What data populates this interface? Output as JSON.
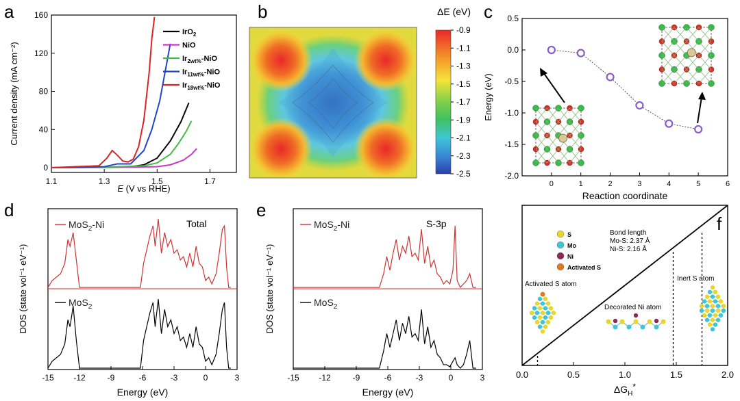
{
  "figure": {
    "panels": [
      "a",
      "b",
      "c",
      "d",
      "e",
      "f"
    ]
  },
  "panel_a": {
    "letter": "a",
    "ylabel": "Current density (mA cm⁻²)",
    "xlabel_main": "E",
    "xlabel_rest": " (V vs RHE)",
    "yticks": [
      "0",
      "40",
      "80",
      "120",
      "160"
    ],
    "xticks": [
      "1.1",
      "1.3",
      "1.5",
      "1.7"
    ],
    "legend": [
      {
        "name": "IrO2",
        "base": "IrO",
        "sub": "2",
        "suffix": "",
        "color": "#000000"
      },
      {
        "name": "NiO",
        "base": "NiO",
        "sub": "",
        "suffix": "",
        "color": "#cc33cc"
      },
      {
        "name": "Ir2wt%-NiO",
        "base": "Ir",
        "sub": "2wt%",
        "suffix": "-NiO",
        "color": "#44bb44"
      },
      {
        "name": "Ir11wt%-NiO",
        "base": "Ir",
        "sub": "11wt%",
        "suffix": "-NiO",
        "color": "#2244cc"
      },
      {
        "name": "Ir18wt%-NiO",
        "base": "Ir",
        "sub": "18wt%",
        "suffix": "-NiO",
        "color": "#dd2222"
      }
    ]
  },
  "panel_b": {
    "letter": "b",
    "colorbar_title": "ΔE (eV)",
    "colorbar_ticks": [
      "-0.9",
      "-1.1",
      "-1.3",
      "-1.5",
      "-1.7",
      "-1.9",
      "-2.1",
      "-2.3",
      "-2.5"
    ]
  },
  "panel_c": {
    "letter": "c",
    "ylabel": "Energy (eV)",
    "xlabel": "Reaction coordinate",
    "yticks": [
      "0.5",
      "0.0",
      "-0.5",
      "-1.0",
      "-1.5",
      "-2.0"
    ],
    "xticks": [
      "0",
      "1",
      "2",
      "3",
      "4",
      "5",
      "6"
    ]
  },
  "panel_d": {
    "letter": "d",
    "ylabel": "DOS (state vol⁻¹ eV⁻¹)",
    "xlabel": "Energy (eV)",
    "xticks": [
      "-15",
      "-12",
      "-9",
      "-6",
      "-3",
      "0",
      "3"
    ],
    "top_label_base": "MoS",
    "top_label_sub": "2",
    "top_label_suffix": "-Ni",
    "bottom_label_base": "MoS",
    "bottom_label_sub": "2",
    "annotation": "Total"
  },
  "panel_e": {
    "letter": "e",
    "ylabel": "DOS (state vol⁻¹ eV⁻¹)",
    "xlabel": "Energy (eV)",
    "xticks": [
      "-15",
      "-12",
      "-9",
      "-6",
      "-3",
      "0",
      "3"
    ],
    "top_label_base": "MoS",
    "top_label_sub": "2",
    "top_label_suffix": "-Ni",
    "bottom_label_base": "MoS",
    "bottom_label_sub": "2",
    "annotation": "S-3p"
  },
  "panel_f": {
    "letter": "f",
    "xlabel_base": "ΔG",
    "xlabel_sub": "H",
    "xlabel_sup": "*",
    "xticks": [
      "0.0",
      "0.5",
      "1.0",
      "1.5",
      "2.0"
    ],
    "legend": [
      {
        "label": "S",
        "color": "#e8d62a"
      },
      {
        "label": "Mo",
        "color": "#3ec6d6"
      },
      {
        "label": "Ni",
        "color": "#8a2a5a"
      },
      {
        "label": "Activated S",
        "color": "#e07a20"
      }
    ],
    "bond_title": "Bond length",
    "bond_mos": "Mo-S:  2.37 Å",
    "bond_nis": "Ni-S: 2.16 Å",
    "label_activated": "Activated S atom",
    "label_decorated": "Decorated Ni atom",
    "label_inert": "Inert S atom"
  },
  "chart_data": [
    {
      "type": "line",
      "panel": "a",
      "xlabel": "E (V vs RHE)",
      "ylabel": "Current density (mA cm-2)",
      "xlim": [
        1.1,
        1.8
      ],
      "ylim": [
        -5,
        160
      ],
      "series": [
        {
          "name": "IrO2",
          "color": "#000000",
          "x": [
            1.1,
            1.3,
            1.4,
            1.45,
            1.5,
            1.55,
            1.59,
            1.62
          ],
          "y": [
            0,
            0.5,
            1,
            3,
            10,
            28,
            48,
            68
          ]
        },
        {
          "name": "NiO",
          "color": "#cc33cc",
          "x": [
            1.1,
            1.3,
            1.5,
            1.55,
            1.6,
            1.63,
            1.65
          ],
          "y": [
            0,
            0.2,
            1,
            3,
            8,
            14,
            20
          ]
        },
        {
          "name": "Ir2wt%-NiO",
          "color": "#44bb44",
          "x": [
            1.1,
            1.3,
            1.45,
            1.5,
            1.55,
            1.58,
            1.61,
            1.63
          ],
          "y": [
            0,
            0.5,
            2,
            5,
            14,
            25,
            38,
            49
          ]
        },
        {
          "name": "Ir11wt%-NiO",
          "color": "#2244cc",
          "x": [
            1.1,
            1.3,
            1.35,
            1.4,
            1.45,
            1.48,
            1.51,
            1.53,
            1.55
          ],
          "y": [
            0,
            1,
            4,
            4,
            18,
            40,
            70,
            100,
            130
          ]
        },
        {
          "name": "Ir18wt%-NiO",
          "color": "#dd2222",
          "x": [
            1.1,
            1.28,
            1.31,
            1.33,
            1.35,
            1.37,
            1.39,
            1.41,
            1.43,
            1.45,
            1.47,
            1.48,
            1.49
          ],
          "y": [
            0,
            2,
            10,
            18,
            13,
            7,
            6,
            9,
            22,
            50,
            100,
            135,
            158
          ]
        }
      ]
    },
    {
      "type": "heatmap",
      "panel": "b",
      "colorbar_label": "ΔE (eV)",
      "zlim": [
        -2.5,
        -0.9
      ],
      "description_values": {
        "corners": -0.9,
        "center": -2.5
      }
    },
    {
      "type": "scatter",
      "panel": "c",
      "xlabel": "Reaction coordinate",
      "ylabel": "Energy (eV)",
      "xlim": [
        -1,
        6
      ],
      "ylim": [
        -2.0,
        0.5
      ],
      "x": [
        0,
        1,
        2,
        3,
        4,
        5
      ],
      "y": [
        0.0,
        -0.05,
        -0.43,
        -0.88,
        -1.17,
        -1.26
      ]
    },
    {
      "type": "line",
      "panel": "d",
      "xlabel": "Energy (eV)",
      "xlim": [
        -15,
        3
      ],
      "series": [
        {
          "name": "MoS2-Ni",
          "color": "#cc3333",
          "x": [
            -15,
            -14.6,
            -14.2,
            -13.8,
            -13.4,
            -13.1,
            -12.9,
            -12.6,
            -12.3,
            -12,
            -6.2,
            -5.9,
            -5.6,
            -5.3,
            -5,
            -4.8,
            -4.5,
            -4.2,
            -3.9,
            -3.6,
            -3.3,
            -3.0,
            -2.7,
            -2.4,
            -2.1,
            -1.8,
            -1.5,
            -1.2,
            -0.9,
            -0.6,
            -0.3,
            0,
            0.3,
            0.6,
            1,
            1.3,
            1.6,
            1.8,
            2.0,
            2.2,
            2.4
          ],
          "y": [
            0,
            0.1,
            0.15,
            0.2,
            0.35,
            0.7,
            0.6,
            0.8,
            0.4,
            0,
            0,
            0.35,
            0.55,
            0.75,
            0.9,
            0.6,
            1.0,
            0.5,
            0.8,
            0.6,
            0.7,
            0.5,
            0.55,
            0.4,
            0.45,
            0.3,
            0.5,
            0.3,
            0.6,
            0.35,
            0.3,
            0.1,
            0.15,
            0.05,
            0.2,
            0.5,
            0.85,
            0.9,
            0.3,
            0,
            0
          ]
        },
        {
          "name": "MoS2",
          "color": "#000000",
          "x": [
            -15,
            -14.6,
            -14.2,
            -13.8,
            -13.4,
            -13.1,
            -12.9,
            -12.6,
            -12.3,
            -12,
            -6.2,
            -5.9,
            -5.6,
            -5.3,
            -5,
            -4.8,
            -4.5,
            -4.2,
            -3.9,
            -3.6,
            -3.3,
            -3.0,
            -2.7,
            -2.4,
            -2.1,
            -1.8,
            -1.5,
            -1.2,
            -0.9,
            -0.6,
            -0.3,
            0,
            0.3,
            0.6,
            1,
            1.3,
            1.6,
            1.8,
            2.0,
            2.2,
            2.4
          ],
          "y": [
            0,
            0.1,
            0.15,
            0.2,
            0.35,
            0.7,
            0.6,
            0.9,
            0.4,
            0,
            0,
            0.4,
            0.6,
            0.8,
            0.95,
            0.6,
            1.0,
            0.5,
            0.85,
            0.6,
            0.7,
            0.5,
            0.6,
            0.4,
            0.45,
            0.3,
            0.5,
            0.3,
            0.6,
            0.35,
            0.3,
            0.1,
            0.15,
            0.05,
            0.2,
            0.5,
            0.85,
            0.95,
            0.3,
            0,
            0
          ]
        }
      ]
    },
    {
      "type": "line",
      "panel": "e",
      "xlabel": "Energy (eV)",
      "xlim": [
        -15,
        3
      ],
      "series": [
        {
          "name": "MoS2-Ni",
          "color": "#cc3333",
          "x": [
            -15,
            -6.8,
            -6.4,
            -6.1,
            -5.8,
            -5.5,
            -5.2,
            -4.9,
            -4.6,
            -4.3,
            -4.0,
            -3.7,
            -3.4,
            -3.1,
            -2.8,
            -2.5,
            -2.2,
            -1.9,
            -1.6,
            -1.3,
            -1,
            -0.7,
            -0.4,
            -0.1,
            0.2,
            0.4,
            0.6,
            0.9,
            1.2,
            1.5,
            1.8,
            2.1,
            2.4
          ],
          "y": [
            0,
            0,
            0.2,
            0.45,
            0.25,
            0.5,
            0.7,
            0.4,
            0.6,
            0.5,
            0.75,
            0.45,
            0.5,
            0.4,
            0.85,
            0.35,
            0.6,
            0.3,
            0.4,
            0.2,
            0.15,
            0.05,
            0.1,
            0.05,
            0.25,
            0.9,
            0.1,
            0,
            0.05,
            0.1,
            0.2,
            0,
            0
          ]
        },
        {
          "name": "MoS2",
          "color": "#000000",
          "x": [
            -15,
            -6.8,
            -6.4,
            -6.1,
            -5.8,
            -5.5,
            -5.2,
            -4.9,
            -4.6,
            -4.3,
            -4.0,
            -3.7,
            -3.4,
            -3.1,
            -2.8,
            -2.5,
            -2.2,
            -1.9,
            -1.6,
            -1.3,
            -1,
            -0.7,
            -0.4,
            -0.1,
            0.2,
            0.4,
            0.6,
            0.9,
            1.2,
            1.5,
            1.8,
            2.1,
            2.4
          ],
          "y": [
            0,
            0,
            0.25,
            0.5,
            0.3,
            0.5,
            0.7,
            0.4,
            0.65,
            0.5,
            0.75,
            0.45,
            0.5,
            0.4,
            0.85,
            0.35,
            0.6,
            0.3,
            0.4,
            0.2,
            0.15,
            0.05,
            0.05,
            0.02,
            0.1,
            0.15,
            0.05,
            0,
            0.05,
            0.2,
            0.4,
            0,
            0
          ]
        }
      ]
    },
    {
      "type": "line",
      "panel": "f",
      "xlabel": "ΔGH*",
      "xlim": [
        0.0,
        2.0
      ],
      "series": [
        {
          "name": "diagonal",
          "x": [
            0,
            2
          ],
          "y": [
            0,
            1
          ]
        }
      ],
      "markers_x": [
        0.15,
        1.47,
        1.75
      ]
    }
  ]
}
